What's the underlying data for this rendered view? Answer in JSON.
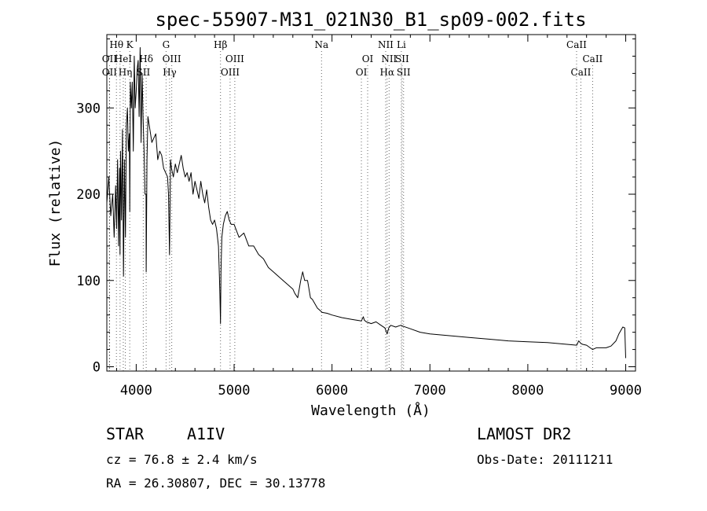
{
  "chart_data": {
    "type": "line",
    "title": "spec-55907-M31_021N30_B1_sp09-002.fits",
    "xlabel": "Wavelength (Å)",
    "ylabel": "Flux (relative)",
    "xlim": [
      3700,
      9100
    ],
    "ylim": [
      -5,
      385
    ],
    "x_ticks": [
      4000,
      5000,
      6000,
      7000,
      8000,
      9000
    ],
    "y_ticks": [
      0,
      100,
      200,
      300
    ],
    "grid": false,
    "series": [
      {
        "x": [
          3700,
          3720,
          3740,
          3760,
          3775,
          3790,
          3800,
          3810,
          3820,
          3830,
          3835,
          3840,
          3850,
          3860,
          3870,
          3880,
          3890,
          3900,
          3910,
          3920,
          3930,
          3934,
          3940,
          3950,
          3960,
          3970,
          3980,
          3990,
          4000,
          4010,
          4020,
          4030,
          4040,
          4050,
          4060,
          4070,
          4080,
          4090,
          4100,
          4102,
          4110,
          4120,
          4140,
          4160,
          4180,
          4200,
          4220,
          4240,
          4260,
          4280,
          4300,
          4320,
          4330,
          4340,
          4345,
          4350,
          4360,
          4380,
          4400,
          4420,
          4440,
          4460,
          4480,
          4500,
          4520,
          4540,
          4560,
          4580,
          4600,
          4620,
          4640,
          4660,
          4680,
          4700,
          4720,
          4740,
          4760,
          4780,
          4800,
          4820,
          4840,
          4850,
          4855,
          4861,
          4866,
          4875,
          4890,
          4910,
          4930,
          4950,
          4970,
          5000,
          5050,
          5100,
          5150,
          5200,
          5250,
          5300,
          5350,
          5400,
          5450,
          5500,
          5550,
          5600,
          5620,
          5650,
          5680,
          5700,
          5720,
          5750,
          5780,
          5800,
          5850,
          5900,
          5950,
          6000,
          6100,
          6200,
          6300,
          6320,
          6330,
          6350,
          6400,
          6450,
          6500,
          6540,
          6563,
          6580,
          6600,
          6650,
          6700,
          6800,
          6900,
          7000,
          7200,
          7400,
          7600,
          7800,
          8000,
          8200,
          8400,
          8500,
          8520,
          8542,
          8560,
          8600,
          8662,
          8700,
          8750,
          8800,
          8850,
          8900,
          8930,
          8950,
          8970,
          8990,
          9000
        ],
        "y": [
          190,
          220,
          175,
          200,
          150,
          210,
          160,
          240,
          140,
          230,
          130,
          250,
          170,
          275,
          105,
          240,
          150,
          280,
          300,
          250,
          270,
          180,
          330,
          300,
          330,
          250,
          360,
          300,
          320,
          345,
          355,
          290,
          370,
          260,
          340,
          290,
          250,
          200,
          200,
          110,
          240,
          290,
          275,
          260,
          265,
          270,
          240,
          250,
          245,
          230,
          225,
          220,
          200,
          130,
          180,
          240,
          230,
          220,
          235,
          225,
          235,
          245,
          230,
          220,
          225,
          215,
          225,
          200,
          215,
          205,
          195,
          215,
          200,
          190,
          205,
          185,
          170,
          165,
          170,
          160,
          140,
          105,
          85,
          50,
          110,
          150,
          165,
          175,
          180,
          170,
          165,
          165,
          150,
          155,
          140,
          140,
          130,
          125,
          115,
          110,
          105,
          100,
          95,
          90,
          85,
          80,
          100,
          110,
          100,
          100,
          80,
          78,
          68,
          63,
          62,
          60,
          57,
          55,
          53,
          58,
          54,
          52,
          50,
          52,
          48,
          45,
          38,
          45,
          48,
          46,
          48,
          44,
          40,
          38,
          36,
          34,
          32,
          30,
          29,
          28,
          26,
          25,
          30,
          27,
          26,
          25,
          20,
          22,
          22,
          22,
          24,
          30,
          38,
          42,
          46,
          45,
          10
        ]
      }
    ],
    "line_markers": [
      {
        "x": 3798,
        "row": 0,
        "label": "Hθ"
      },
      {
        "x": 3835,
        "row": 0,
        "label": ""
      },
      {
        "x": 3934,
        "row": 0,
        "label": "K"
      },
      {
        "x": 3727,
        "row": 1,
        "label": "OII"
      },
      {
        "x": 3868,
        "row": 1,
        "label": "HeI"
      },
      {
        "x": 4102,
        "row": 1,
        "label": "Hδ"
      },
      {
        "x": 3727,
        "row": 2,
        "label": "OII"
      },
      {
        "x": 3889,
        "row": 2,
        "label": "Hη"
      },
      {
        "x": 4072,
        "row": 2,
        "label": "SII"
      },
      {
        "x": 4305,
        "row": 0,
        "label": "G"
      },
      {
        "x": 4363,
        "row": 1,
        "label": "OIII"
      },
      {
        "x": 4341,
        "row": 2,
        "label": "Hγ"
      },
      {
        "x": 4861,
        "row": 0,
        "label": "Hβ"
      },
      {
        "x": 5007,
        "row": 1,
        "label": "OIII"
      },
      {
        "x": 4959,
        "row": 2,
        "label": "OIII"
      },
      {
        "x": 5893,
        "row": 0,
        "label": "Na"
      },
      {
        "x": 6364,
        "row": 1,
        "label": "OI"
      },
      {
        "x": 6300,
        "row": 2,
        "label": "OI"
      },
      {
        "x": 6548,
        "row": 0,
        "label": "NII"
      },
      {
        "x": 6583,
        "row": 1,
        "label": "NII"
      },
      {
        "x": 6563,
        "row": 2,
        "label": "Hα"
      },
      {
        "x": 6708,
        "row": 0,
        "label": "Li"
      },
      {
        "x": 6716,
        "row": 1,
        "label": "SII"
      },
      {
        "x": 6731,
        "row": 2,
        "label": "SII"
      },
      {
        "x": 8498,
        "row": 0,
        "label": "CaII"
      },
      {
        "x": 8662,
        "row": 1,
        "label": "CaII"
      },
      {
        "x": 8542,
        "row": 2,
        "label": "CaII"
      }
    ]
  },
  "footer": {
    "class_label": "STAR",
    "subclass": "A1IV",
    "cz": "cz = 76.8 ± 2.4 km/s",
    "coords": "RA =  26.30807, DEC =  30.13778",
    "survey": "LAMOST DR2",
    "obs_date": "Obs-Date: 20111211"
  }
}
